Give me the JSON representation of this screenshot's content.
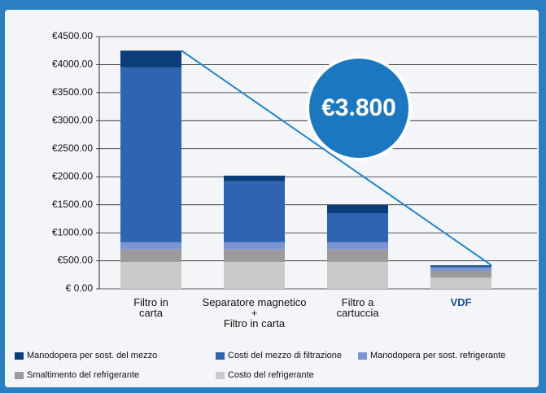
{
  "chart_data": {
    "type": "stacked-bar",
    "categories": [
      "Filtro in\ncarta",
      "Separatore magnetico\n+\nFiltro in carta",
      "Filtro a\ncartuccia",
      "VDF"
    ],
    "series": [
      {
        "name": "Manodopera per sost. del mezzo",
        "color": "#0b3d7a",
        "values": [
          300,
          100,
          150,
          20
        ]
      },
      {
        "name": "Costi del mezzo di filtrazione",
        "color": "#2f64b2",
        "values": [
          3120,
          1090,
          520,
          20
        ]
      },
      {
        "name": "Manodopera per sost. refrigerante",
        "color": "#7b95d1",
        "values": [
          130,
          130,
          130,
          60
        ]
      },
      {
        "name": "Smaltimento del refrigerante",
        "color": "#9b9b9b",
        "values": [
          220,
          220,
          220,
          120
        ]
      },
      {
        "name": "Costo del refrigerante",
        "color": "#cacaca",
        "values": [
          480,
          480,
          480,
          200
        ]
      }
    ],
    "ylim": [
      0,
      4500
    ],
    "yticks": [
      {
        "value": 0,
        "label": "€ 0.00"
      },
      {
        "value": 500,
        "label": "€500.00"
      },
      {
        "value": 1000,
        "label": "€1000.00"
      },
      {
        "value": 1500,
        "label": "€1500.00"
      },
      {
        "value": 2000,
        "label": "€2000.00"
      },
      {
        "value": 2500,
        "label": "€2500.00"
      },
      {
        "value": 3000,
        "label": "€3000.00"
      },
      {
        "value": 3500,
        "label": "€3500.00"
      },
      {
        "value": 4000,
        "label": "€4000.00"
      },
      {
        "value": 4500,
        "label": "€4500.00"
      }
    ],
    "grid": true,
    "annotation": "€3.800"
  }
}
